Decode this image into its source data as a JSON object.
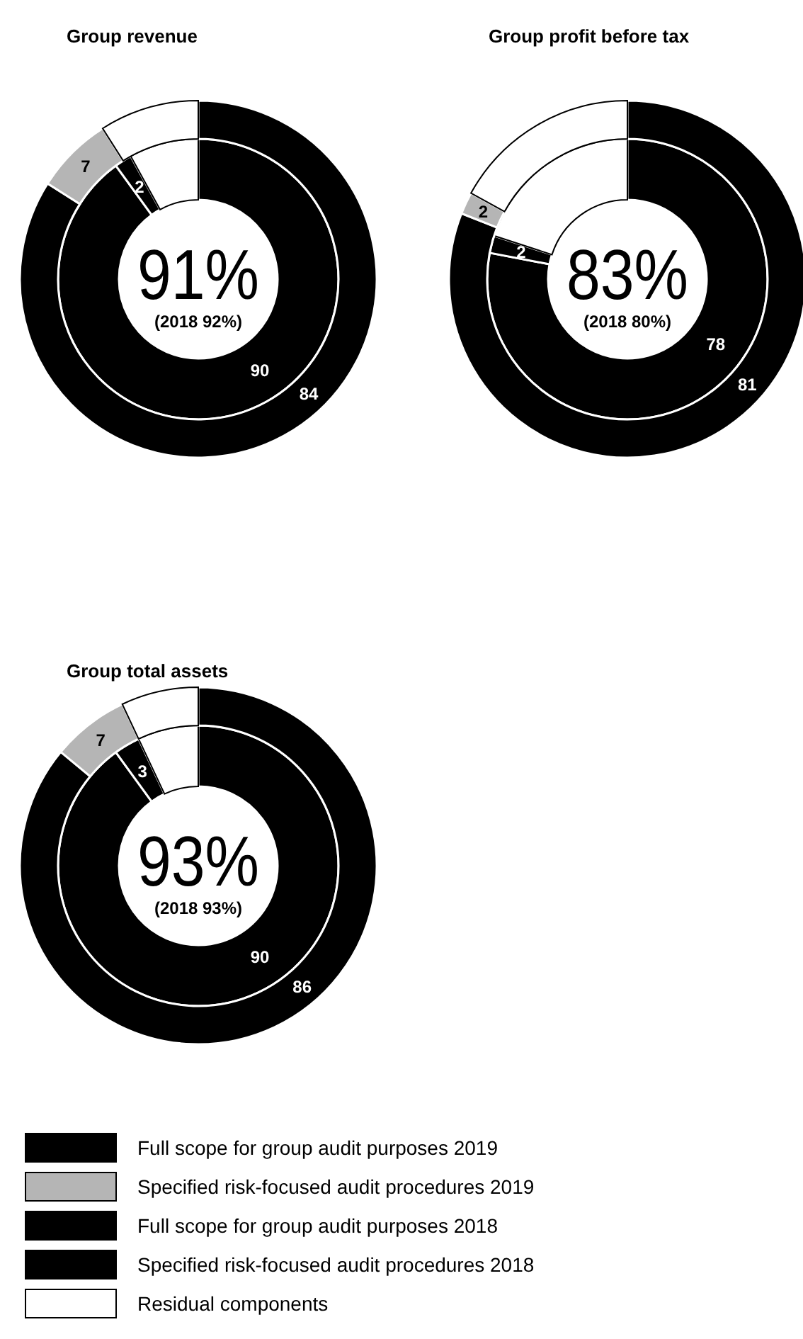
{
  "chart_data": [
    {
      "type": "donut",
      "title": "Group revenue",
      "categories": [
        "Full scope for group audit purposes 2019",
        "Specified risk-focused audit procedures 2019",
        "Full scope for group audit purposes 2018",
        "Specified risk-focused audit procedures 2018",
        "Residual components"
      ],
      "series": [
        {
          "values": [
            null,
            null,
            90,
            2,
            8
          ],
          "colors": [
            null,
            null,
            "#000000",
            "#000000",
            "#ffffff"
          ],
          "value_labels": [
            null,
            null,
            "90",
            "2",
            null
          ]
        },
        {
          "values": [
            84,
            7,
            null,
            null,
            9
          ],
          "colors": [
            "#000000",
            "#b5b5b5",
            null,
            null,
            "#ffffff"
          ],
          "value_labels": [
            "84",
            "7",
            null,
            null,
            null
          ]
        }
      ],
      "annotations": [
        "91%",
        "(2018 92%)"
      ],
      "legend": "bottom"
    },
    {
      "type": "donut",
      "title": "Group profit before tax",
      "series": [
        {
          "values": [
            null,
            null,
            78,
            2,
            20
          ],
          "colors": [
            null,
            null,
            "#000000",
            "#000000",
            "#ffffff"
          ],
          "value_labels": [
            null,
            null,
            "78",
            "2",
            null
          ]
        },
        {
          "values": [
            81,
            2,
            null,
            null,
            17
          ],
          "colors": [
            "#000000",
            "#b5b5b5",
            null,
            null,
            "#ffffff"
          ],
          "value_labels": [
            "81",
            "2",
            null,
            null,
            null
          ]
        }
      ],
      "annotations": [
        "83%",
        "(2018 80%)"
      ]
    },
    {
      "type": "donut",
      "title": "Group total assets",
      "series": [
        {
          "values": [
            null,
            null,
            90,
            3,
            7
          ],
          "colors": [
            null,
            null,
            "#000000",
            "#000000",
            "#ffffff"
          ],
          "value_labels": [
            null,
            null,
            "90",
            "3",
            null
          ]
        },
        {
          "values": [
            86,
            7,
            null,
            null,
            7
          ],
          "colors": [
            "#000000",
            "#b5b5b5",
            null,
            null,
            "#ffffff"
          ],
          "value_labels": [
            "86",
            "7",
            null,
            null,
            null
          ]
        }
      ],
      "annotations": [
        "93%",
        "(2018 93%)"
      ]
    }
  ]
}
